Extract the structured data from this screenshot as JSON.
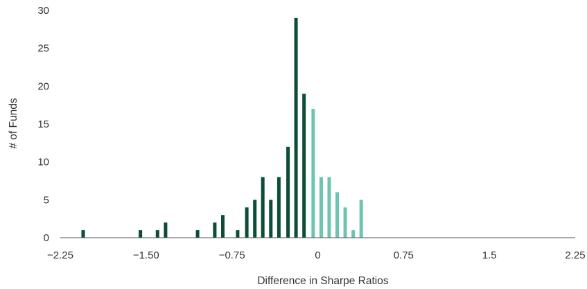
{
  "chart_data": {
    "type": "bar",
    "xlabel": "Difference in Sharpe Ratios",
    "ylabel": "# of Funds",
    "xlim": [
      -2.25,
      2.25
    ],
    "ylim": [
      0,
      30
    ],
    "x_ticks": [
      "−2.25",
      "−1.50",
      "−0.75",
      "0",
      "0.75",
      "1.5",
      "2.25"
    ],
    "x_tick_values": [
      -2.25,
      -1.5,
      -0.75,
      0,
      0.75,
      1.5,
      2.25
    ],
    "y_ticks": [
      "0",
      "5",
      "10",
      "15",
      "20",
      "25",
      "30"
    ],
    "y_tick_values": [
      0,
      5,
      10,
      15,
      20,
      25,
      30
    ],
    "grid": false,
    "colors": {
      "negative": "#0b4d36",
      "positive": "#6cc5b0",
      "axis": "#555555"
    },
    "bars": [
      {
        "x": -2.05,
        "value": 1
      },
      {
        "x": -1.55,
        "value": 1
      },
      {
        "x": -1.4,
        "value": 1
      },
      {
        "x": -1.33,
        "value": 2
      },
      {
        "x": -1.05,
        "value": 1
      },
      {
        "x": -0.9,
        "value": 2
      },
      {
        "x": -0.83,
        "value": 3
      },
      {
        "x": -0.7,
        "value": 1
      },
      {
        "x": -0.62,
        "value": 4
      },
      {
        "x": -0.55,
        "value": 5
      },
      {
        "x": -0.48,
        "value": 8
      },
      {
        "x": -0.41,
        "value": 5
      },
      {
        "x": -0.34,
        "value": 8
      },
      {
        "x": -0.26,
        "value": 12
      },
      {
        "x": -0.19,
        "value": 29
      },
      {
        "x": -0.12,
        "value": 19
      },
      {
        "x": -0.04,
        "value": 17
      },
      {
        "x": 0.03,
        "value": 8
      },
      {
        "x": 0.1,
        "value": 8
      },
      {
        "x": 0.17,
        "value": 6
      },
      {
        "x": 0.24,
        "value": 4
      },
      {
        "x": 0.31,
        "value": 1
      },
      {
        "x": 0.38,
        "value": 5
      }
    ]
  }
}
